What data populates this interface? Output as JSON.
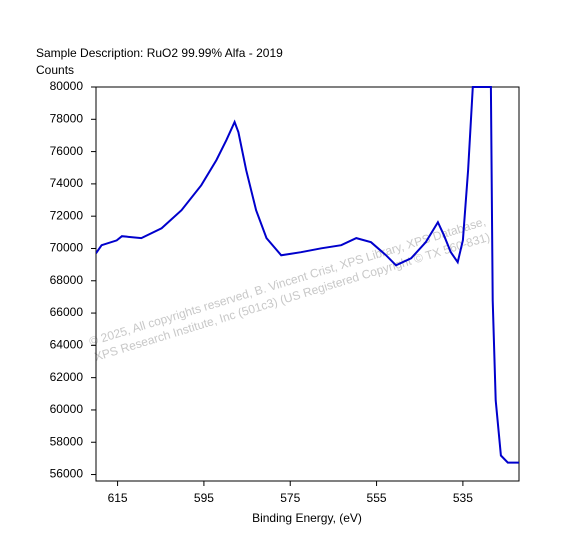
{
  "chart_data": {
    "type": "line",
    "title": "Sample Description:  RuO2 99.99% Alfa - 2019",
    "y_label": "Counts",
    "x_label": "Binding Energy, (eV)",
    "annotations": [
      "© 2025,  All copyrights reserved,  B. Vincent Crist,  XPS Library,  XPS Database,",
      "XPS Research Institute, Inc (501c3)  (US Registered Copyright © TX 560-831)"
    ],
    "x": [
      620,
      618.7,
      615.2,
      614,
      609.5,
      604.8,
      600.2,
      595.6,
      592.1,
      589.8,
      587.9,
      587,
      585.2,
      582.9,
      580.5,
      577.1,
      572.5,
      567.8,
      563.2,
      559.7,
      556.3,
      552.8,
      550.5,
      547,
      543.6,
      540.8,
      539.4,
      537.8,
      536.2,
      535,
      533.8,
      532.7,
      528.5,
      528.1,
      527.4,
      526.2,
      524.6,
      521.8
    ],
    "series": [
      {
        "name": "RuO2",
        "color": "#0000cc",
        "values": [
          69700,
          70200,
          70500,
          70760,
          70640,
          71250,
          72370,
          73920,
          75470,
          76710,
          77830,
          77200,
          74850,
          72370,
          70640,
          69580,
          69770,
          70010,
          70200,
          70640,
          70390,
          69580,
          68960,
          69390,
          70390,
          71630,
          70820,
          69770,
          69150,
          70510,
          74850,
          80000,
          80000,
          66790,
          60590,
          57180,
          56740,
          56740
        ]
      }
    ],
    "xlim": [
      620,
      522
    ],
    "xticks": [
      615,
      595,
      575,
      555,
      535
    ],
    "ylim": [
      55600,
      80000
    ],
    "yticks": [
      56000,
      58000,
      60000,
      62000,
      64000,
      66000,
      68000,
      70000,
      72000,
      74000,
      76000,
      78000,
      80000
    ],
    "grid": false
  }
}
